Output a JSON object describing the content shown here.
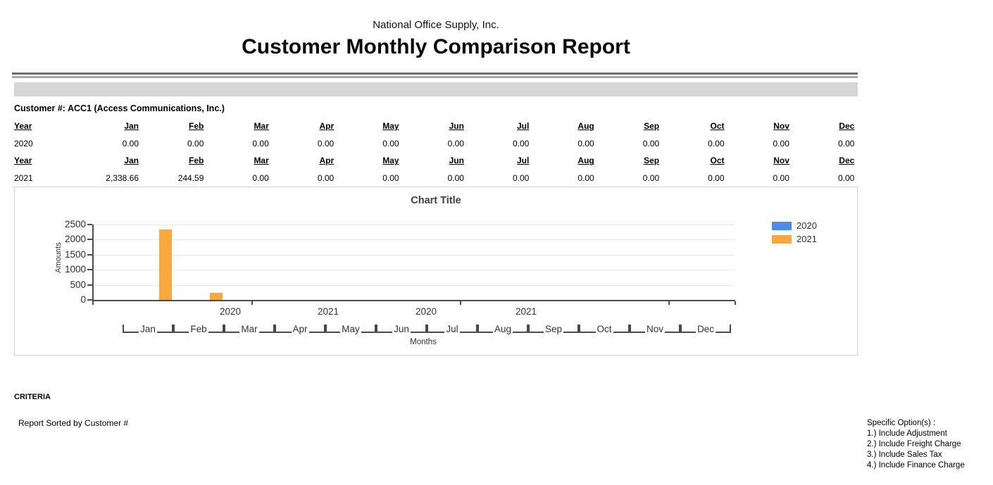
{
  "report": {
    "company": "National Office Supply, Inc.",
    "title": "Customer Monthly Comparison Report",
    "customer_line": "Customer #: ACC1 (Access Communications, Inc.)"
  },
  "table": {
    "header": [
      "Year",
      "Jan",
      "Feb",
      "Mar",
      "Apr",
      "May",
      "Jun",
      "Jul",
      "Aug",
      "Sep",
      "Oct",
      "Nov",
      "Dec"
    ],
    "rows": [
      [
        "2020",
        "0.00",
        "0.00",
        "0.00",
        "0.00",
        "0.00",
        "0.00",
        "0.00",
        "0.00",
        "0.00",
        "0.00",
        "0.00",
        "0.00"
      ],
      [
        "2021",
        "2,338.66",
        "244.59",
        "0.00",
        "0.00",
        "0.00",
        "0.00",
        "0.00",
        "0.00",
        "0.00",
        "0.00",
        "0.00",
        "0.00"
      ]
    ]
  },
  "chart_data": {
    "type": "bar",
    "title": "Chart Title",
    "xlabel": "Months",
    "ylabel": "Amounts",
    "categories": [
      "Jan",
      "Feb",
      "Mar",
      "Apr",
      "May",
      "Jun",
      "Jul",
      "Aug",
      "Sep",
      "Oct",
      "Nov",
      "Dec"
    ],
    "series": [
      {
        "name": "2020",
        "color": "#4D8BE8",
        "values": [
          0,
          0,
          0,
          0,
          0,
          0,
          0,
          0,
          0,
          0,
          0,
          0
        ]
      },
      {
        "name": "2021",
        "color": "#F9A93C",
        "values": [
          2338.66,
          244.59,
          0,
          0,
          0,
          0,
          0,
          0,
          0,
          0,
          0,
          0
        ]
      }
    ],
    "y_ticks": [
      0,
      500,
      1000,
      1500,
      2000,
      2500
    ],
    "ylim": [
      0,
      2500
    ],
    "axis_year_labels": [
      "2020",
      "2021",
      "2020",
      "2021"
    ],
    "legend_position": "right",
    "grid": true
  },
  "footer": {
    "criteria_label": "CRITERIA",
    "sorted_by": "Report Sorted by Customer #",
    "options_title": "Specific Option(s) :",
    "options": [
      "1.) Include Adjustment",
      "2.) Include Freight Charge",
      "3.) Include Sales Tax",
      "4.) Include Finance Charge"
    ]
  }
}
